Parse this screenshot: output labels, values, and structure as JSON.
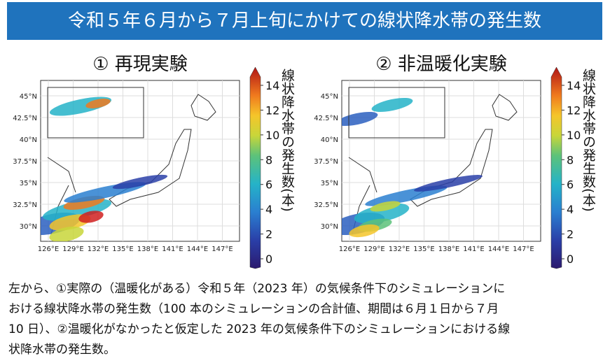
{
  "header": {
    "title": "令和５年６月から７月上旬にかけての線状降水帯の発生数"
  },
  "panels": [
    {
      "title": "① 再現実験",
      "xticks": [
        "126°E",
        "129°E",
        "132°E",
        "135°E",
        "138°E",
        "141°E",
        "144°E",
        "147°E"
      ],
      "yticks": [
        "45°N",
        "42.5°N",
        "40°N",
        "37.5°N",
        "35°N",
        "32.5°N",
        "30°N"
      ],
      "colorbar_label": "線状降水帯の発生数(本)",
      "colorbar_ticks": [
        0,
        2,
        4,
        6,
        8,
        10,
        12,
        14
      ]
    },
    {
      "title": "② 非温暖化実験",
      "xticks": [
        "126°E",
        "129°E",
        "132°E",
        "135°E",
        "138°E",
        "141°E",
        "144°E",
        "147°E"
      ],
      "yticks": [
        "45°N",
        "42.5°N",
        "40°N",
        "37.5°N",
        "35°N",
        "32.5°N",
        "30°N"
      ],
      "colorbar_label": "線状降水帯の発生数(本)",
      "colorbar_ticks": [
        0,
        2,
        4,
        6,
        8,
        10,
        12,
        14
      ]
    }
  ],
  "caption": {
    "lines": [
      "左から、①実際の（温暖化がある）令和５年（2023 年）の気候条件下のシミュレーションに",
      "おける線状降水帯の発生数（100 本のシミュレーションの合計値、期間は６月１日から７月",
      "10 日）、②温暖化がなかったと仮定した 2023 年の気候条件下のシミュレーションにおける線",
      "状降水帯の発生数。"
    ]
  }
}
